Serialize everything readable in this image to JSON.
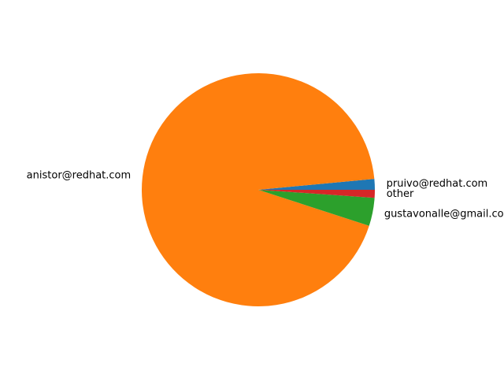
{
  "chart_data": {
    "type": "pie",
    "title": "",
    "start_angle_deg": 0,
    "direction": "counterclockwise",
    "slices": [
      {
        "label": "pruivo@redhat.com",
        "value": 1.5,
        "color": "#1f77b4"
      },
      {
        "label": "anistor@redhat.com",
        "value": 93.5,
        "color": "#ff7f0e"
      },
      {
        "label": "gustavonalle@gmail.com",
        "value": 3.9,
        "color": "#2ca02c"
      },
      {
        "label": "other",
        "value": 1.1,
        "color": "#d62728"
      }
    ]
  }
}
